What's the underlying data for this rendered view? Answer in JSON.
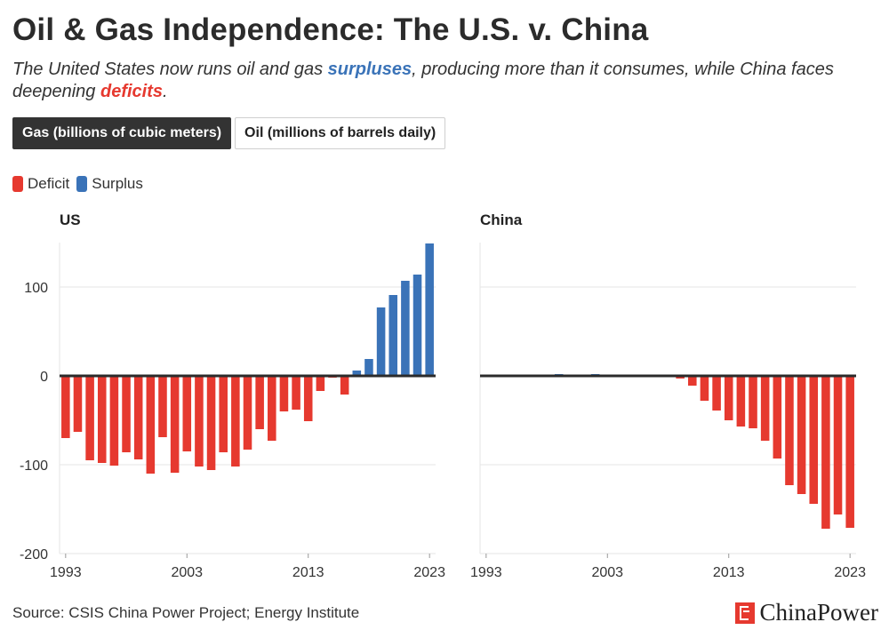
{
  "title": "Oil & Gas Independence: The U.S. v. China",
  "subtitle": {
    "part1": "The United States now runs oil and gas ",
    "surplus_word": "surpluses",
    "part2": ", producing more than it consumes, while China faces deepening ",
    "deficit_word": "deficits",
    "part3": "."
  },
  "tabs": [
    {
      "label": "Gas (billions of cubic meters)",
      "active": true
    },
    {
      "label": "Oil (millions of barrels daily)",
      "active": false
    }
  ],
  "legend": [
    {
      "label": "Deficit",
      "color": "#e6392f"
    },
    {
      "label": "Surplus",
      "color": "#3a73b8"
    }
  ],
  "source": "Source: CSIS China Power Project; Energy Institute",
  "brand": "ChinaPower",
  "chart_data": [
    {
      "type": "bar",
      "title": "US",
      "x": [
        1993,
        1994,
        1995,
        1996,
        1997,
        1998,
        1999,
        2000,
        2001,
        2002,
        2003,
        2004,
        2005,
        2006,
        2007,
        2008,
        2009,
        2010,
        2011,
        2012,
        2013,
        2014,
        2015,
        2016,
        2017,
        2018,
        2019,
        2020,
        2021,
        2022,
        2023
      ],
      "values": [
        -70,
        -63,
        -95,
        -98,
        -101,
        -86,
        -94,
        -110,
        -69,
        -109,
        -85,
        -102,
        -106,
        -86,
        -102,
        -83,
        -60,
        -73,
        -40,
        -38,
        -51,
        -17,
        -2,
        -21,
        6,
        19,
        77,
        91,
        107,
        114,
        149
      ],
      "ylim": [
        -200,
        150
      ],
      "yticks": [
        -200,
        -100,
        0,
        100
      ],
      "xticks": [
        1993,
        2003,
        2013,
        2023
      ],
      "colors": {
        "deficit": "#e6392f",
        "surplus": "#3a73b8"
      }
    },
    {
      "type": "bar",
      "title": "China",
      "x": [
        1993,
        1994,
        1995,
        1996,
        1997,
        1998,
        1999,
        2000,
        2001,
        2002,
        2003,
        2004,
        2005,
        2006,
        2007,
        2008,
        2009,
        2010,
        2011,
        2012,
        2013,
        2014,
        2015,
        2016,
        2017,
        2018,
        2019,
        2020,
        2021,
        2022,
        2023
      ],
      "values": [
        0,
        0,
        0,
        0,
        1.5,
        1.5,
        2,
        1.5,
        1.5,
        2,
        0,
        0,
        1,
        0,
        0,
        0,
        -3,
        -11,
        -28,
        -39,
        -50,
        -57,
        -59,
        -73,
        -93,
        -123,
        -133,
        -144,
        -172,
        -156,
        -171
      ],
      "ylim": [
        -200,
        150
      ],
      "yticks": [
        -200,
        -100,
        0,
        100
      ],
      "xticks": [
        1993,
        2003,
        2013,
        2023
      ],
      "colors": {
        "deficit": "#e6392f",
        "surplus": "#3a73b8"
      }
    }
  ]
}
